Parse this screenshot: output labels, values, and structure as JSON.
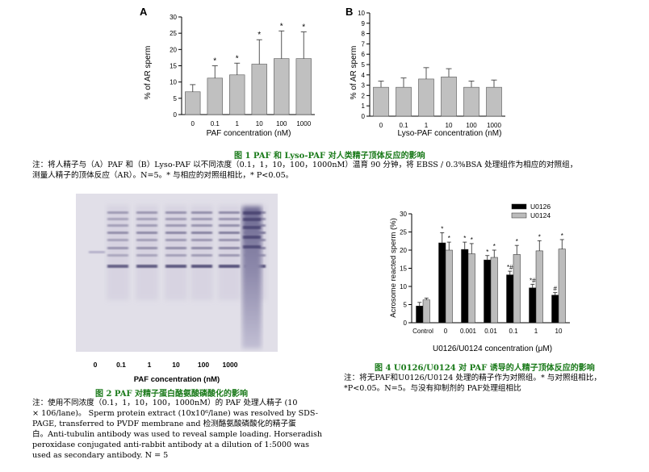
{
  "chart_data": [
    {
      "panel": "A",
      "type": "bar",
      "categories": [
        "0",
        "0.1",
        "1",
        "10",
        "100",
        "1000"
      ],
      "values": [
        7,
        11.2,
        12.2,
        15.5,
        17.2,
        17.2
      ],
      "errors": [
        2.2,
        3.8,
        3.6,
        7.5,
        8.5,
        8.2
      ],
      "significance": [
        "",
        "*",
        "*",
        "*",
        "*",
        "*"
      ],
      "xlabel": "PAF concentration (nM)",
      "ylabel": "% of AR sperm",
      "ylim": [
        0,
        30
      ],
      "yticks": [
        0,
        5,
        10,
        15,
        20,
        25,
        30
      ]
    },
    {
      "panel": "B",
      "type": "bar",
      "categories": [
        "0",
        "0.1",
        "1",
        "10",
        "100",
        "1000"
      ],
      "values": [
        2.8,
        2.8,
        3.6,
        3.8,
        2.8,
        2.8
      ],
      "errors": [
        0.6,
        0.9,
        1.1,
        0.8,
        0.6,
        0.7
      ],
      "xlabel": "Lyso-PAF concentration (nM)",
      "ylabel": "% of AR sperm",
      "ylim": [
        0,
        10
      ],
      "yticks": [
        0,
        1,
        2,
        3,
        4,
        5,
        6,
        7,
        8,
        9,
        10
      ]
    },
    {
      "panel": "fig4",
      "type": "bar",
      "categories": [
        "Control",
        "0",
        "0.001",
        "0.01",
        "0.1",
        "1",
        "10"
      ],
      "series": [
        {
          "name": "U0126",
          "color": "#000000",
          "values": [
            4.6,
            22,
            20.2,
            17.3,
            13.2,
            9.6,
            7.6
          ],
          "errors": [
            1,
            2.8,
            2,
            1.2,
            1,
            1,
            0.7
          ],
          "marks": [
            "",
            "*",
            "*",
            "*",
            "*#",
            "*#",
            "#"
          ]
        },
        {
          "name": "U0124",
          "color": "#bcbcbc",
          "values": [
            6.3,
            20,
            19,
            18,
            18.8,
            19.8,
            20.3
          ],
          "errors": [
            0.5,
            2.2,
            2.8,
            2,
            2.5,
            2.8,
            2.6
          ],
          "marks": [
            "",
            "*",
            "*",
            "*",
            "*",
            "*",
            "*"
          ]
        }
      ],
      "xlabel": "U0126/U0124 concentration (μM)",
      "ylabel": "Acrosome reacted sperm (%)",
      "ylim": [
        0,
        30
      ],
      "yticks": [
        0,
        5,
        10,
        15,
        20,
        25,
        30
      ]
    }
  ],
  "figure1": {
    "caption": "图 1 PAF 和 Lyso-PAF 对人类精子顶体反应的影响",
    "note_lines": [
      "注：将人精子与（A）PAF 和（B）Lyso-PAF 以不同浓度（0.1，1，10，100，1000nM）温育 90 分钟，将 EBSS / 0.3%BSA 处理组作为相应的对照组，",
      "测量人精子的顶体反应（AR）。N=5。* 与相应的对照组相比，* P<0.05。"
    ]
  },
  "figure2": {
    "lane_labels": [
      "0",
      "0.1",
      "1",
      "10",
      "100",
      "1000"
    ],
    "xlabel": "PAF concentration (nM)",
    "caption": "图 2 PAF 对精子蛋白酪氨酸磷酸化的影响",
    "note_lines": [
      "注：使用不同浓度（0.1，1，10，100，1000nM）的 PAF 处理人精子 (10",
      "× 106/lane)。 Sperm protein extract (10x10⁶/lane) was resolved by SDS-",
      "PAGE, transferred to PVDF membrane and 检测酪氨酸磷酸化的精子蛋",
      "白。Anti-tubulin antibody was used to reveal sample loading. Horseradish",
      "peroxidase conjugated anti-rabbit antibody at a dilution of 1:5000 was",
      "used as secondary antibody. N = 5"
    ]
  },
  "figure4": {
    "caption": "图 4 U0126/U0124 对 PAF 诱导的人精子顶体反应的影响",
    "note_lines": [
      "注：将无PAF和U0126/U0124 处理的精子作为对照组。* 与对照组相比，",
      "*P<0.05。N=5。与没有抑制剂的 PAF处理组相比"
    ]
  }
}
